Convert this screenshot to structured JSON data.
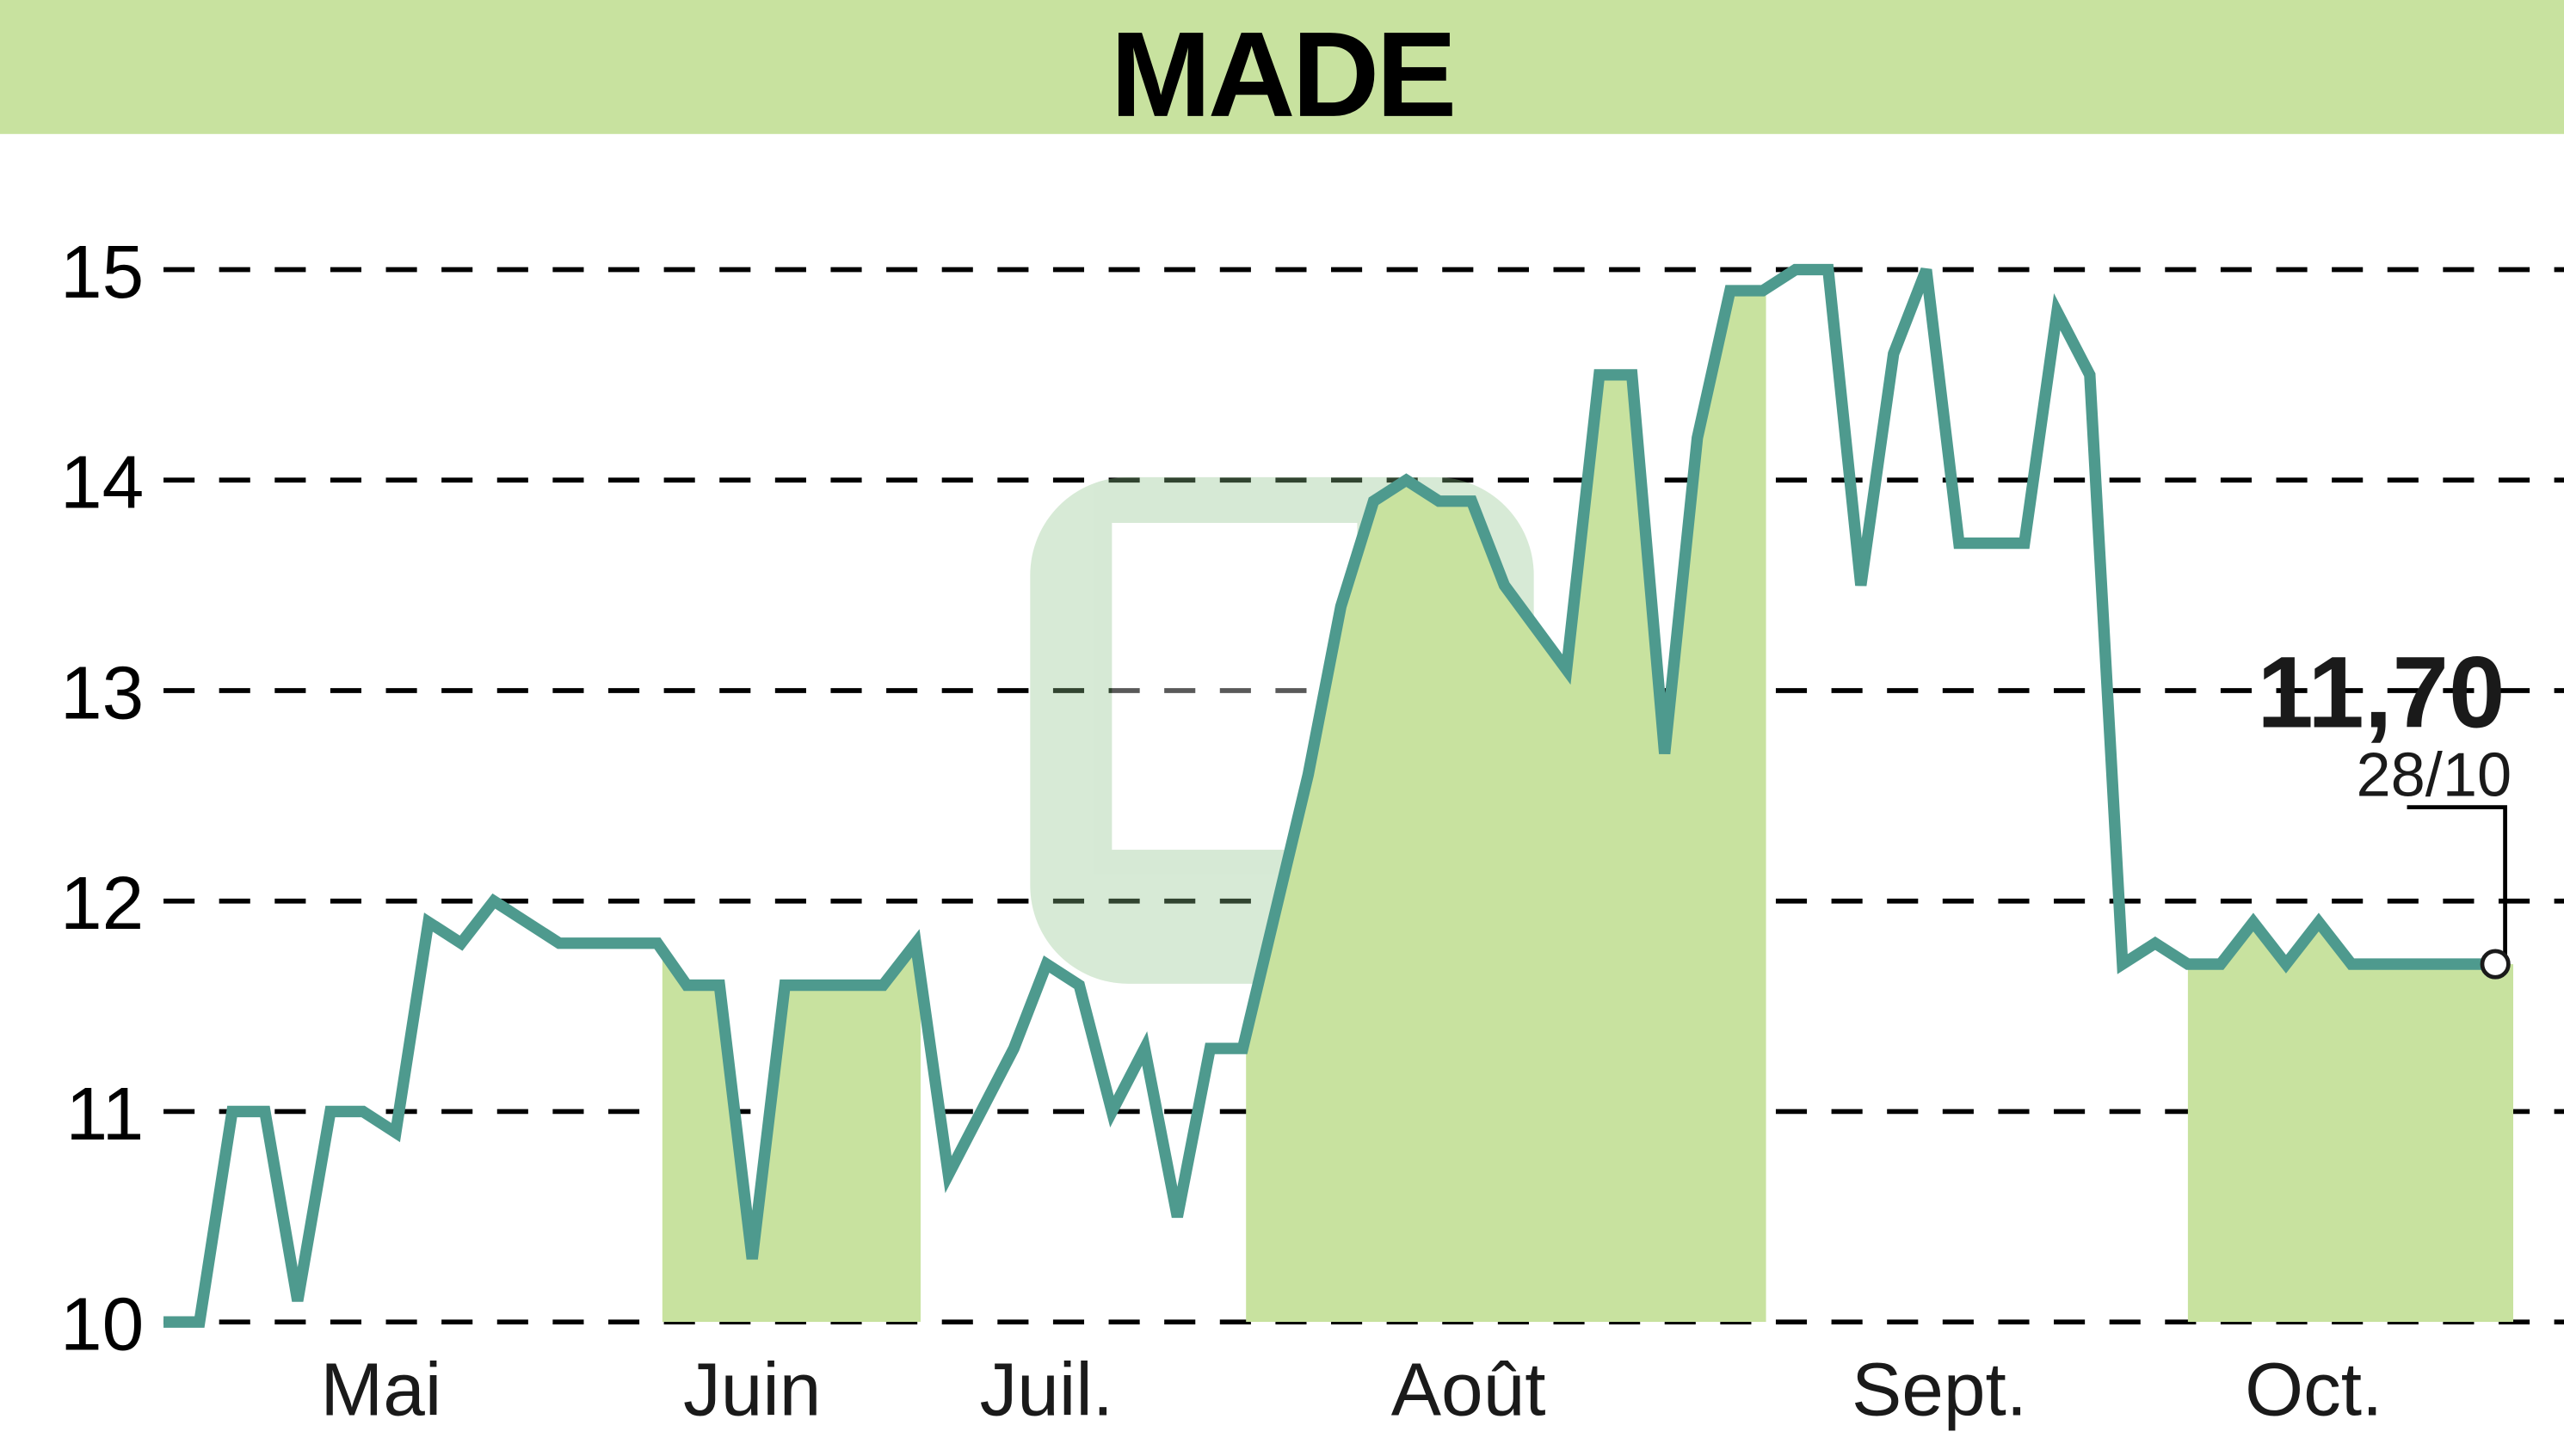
{
  "header": {
    "title": "MADE"
  },
  "colors": {
    "band": "#c8e29f",
    "line": "#4e9a8e",
    "grid": "#000000",
    "title_bg": "#c8e29f"
  },
  "last_point": {
    "value_label": "11,70",
    "date_label": "28/10"
  },
  "chart_data": {
    "type": "line",
    "title": "MADE",
    "xlabel": "",
    "ylabel": "",
    "ylim": [
      10,
      15
    ],
    "yticks": [
      10,
      11,
      12,
      13,
      14,
      15
    ],
    "grid": true,
    "legend": null,
    "x_tick_labels": [
      "Mai",
      "Juin",
      "Juil.",
      "Août",
      "Sept.",
      "Oct."
    ],
    "x_tick_positions": [
      233,
      460,
      640,
      898,
      1186,
      1415
    ],
    "shaded_months": [
      {
        "label": "Juin",
        "x0": 405,
        "x1": 563
      },
      {
        "label": "Août",
        "x0": 762,
        "x1": 1080
      },
      {
        "label": "Oct.",
        "x0": 1338,
        "x1": 1537
      }
    ],
    "series": [
      {
        "name": "MADE",
        "x": [
          100,
          122,
          142,
          162,
          182,
          202,
          222,
          242,
          262,
          282,
          302,
          342,
          402,
          420,
          440,
          460,
          480,
          540,
          560,
          580,
          620,
          640,
          660,
          680,
          700,
          720,
          740,
          760,
          800,
          820,
          840,
          860,
          880,
          900,
          920,
          958,
          978,
          998,
          1018,
          1038,
          1058,
          1078,
          1098,
          1118,
          1138,
          1158,
          1178,
          1198,
          1238,
          1258,
          1278,
          1298,
          1318,
          1338,
          1358,
          1378,
          1398,
          1418,
          1438,
          1526
        ],
        "values": [
          10.0,
          10.0,
          11.0,
          11.0,
          10.1,
          11.0,
          11.0,
          10.9,
          11.9,
          11.8,
          12.0,
          11.8,
          11.8,
          11.6,
          11.6,
          10.3,
          11.6,
          11.6,
          11.8,
          10.7,
          11.3,
          11.7,
          11.6,
          11.0,
          11.3,
          10.5,
          11.3,
          11.3,
          12.6,
          13.4,
          13.9,
          14.0,
          13.9,
          13.9,
          13.5,
          13.1,
          14.5,
          14.5,
          12.7,
          14.2,
          14.9,
          14.9,
          15.0,
          15.0,
          13.5,
          14.6,
          15.0,
          13.7,
          13.7,
          14.8,
          14.5,
          11.7,
          11.8,
          11.7,
          11.7,
          11.9,
          11.7,
          11.9,
          11.7,
          11.7
        ]
      }
    ],
    "annotation": {
      "text": "11,70",
      "subtext": "28/10",
      "value": 11.7
    }
  }
}
